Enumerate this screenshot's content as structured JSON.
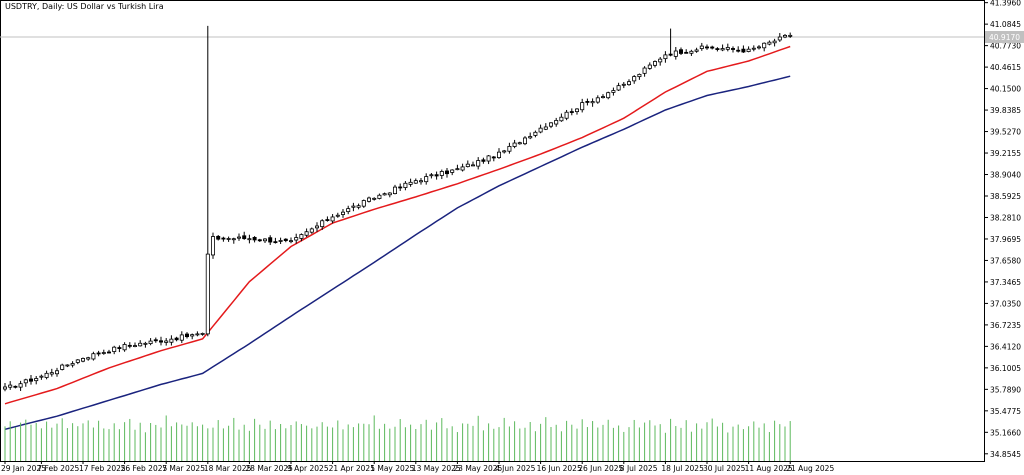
{
  "title": "USDTRY, Daily:  US Dollar vs Turkish Lira",
  "current_price_label": "40.9170",
  "colors": {
    "background": "#ffffff",
    "candle_outline": "#000000",
    "ma_fast": "#e41a1c",
    "ma_slow": "#1a237e",
    "volume": "#5cb85c",
    "price_line": "#c0c0c0",
    "price_badge": "#c0c0c0"
  },
  "chart_data": {
    "type": "candlestick",
    "symbol": "USDTRY",
    "timeframe": "Daily",
    "ylim": [
      34.75,
      41.42
    ],
    "y_ticks": [
      "41.3960",
      "41.0845",
      "40.7730",
      "40.4615",
      "40.1500",
      "39.8385",
      "39.5270",
      "39.2155",
      "38.9040",
      "38.5925",
      "38.2810",
      "37.9695",
      "37.6580",
      "37.3465",
      "37.0350",
      "36.7235",
      "36.4120",
      "36.1005",
      "35.7890",
      "35.4775",
      "35.1660",
      "34.8545"
    ],
    "x_tick_labels": [
      "29 Jan 2025",
      "7 Feb 2025",
      "17 Feb 2025",
      "26 Feb 2025",
      "7 Mar 2025",
      "18 Mar 2025",
      "28 Mar 2025",
      "9 Apr 2025",
      "21 Apr 2025",
      "1 May 2025",
      "13 May 2025",
      "23 May 2025",
      "4 Jun 2025",
      "16 Jun 2025",
      "26 Jun 2025",
      "8 Jul 2025",
      "18 Jul 2025",
      "30 Jul 2025",
      "11 Aug 2025",
      "21 Aug 2025"
    ],
    "x_tick_index": [
      0,
      7,
      15,
      23,
      31,
      39,
      47,
      55,
      63,
      71,
      79,
      87,
      95,
      103,
      111,
      119,
      127,
      135,
      143,
      151
    ],
    "anchors": {
      "idx": [
        0,
        7,
        15,
        23,
        31,
        38,
        39,
        40,
        47,
        55,
        63,
        71,
        79,
        87,
        95,
        103,
        111,
        119,
        127,
        135,
        143,
        151
      ],
      "close": [
        35.8,
        35.98,
        36.25,
        36.42,
        36.51,
        36.6,
        37.75,
        37.98,
        37.98,
        37.92,
        38.3,
        38.57,
        38.82,
        38.98,
        39.2,
        39.58,
        39.92,
        40.2,
        40.65,
        40.75,
        40.7,
        40.93
      ]
    },
    "spikes": [
      {
        "idx": 39,
        "high": 41.06
      },
      {
        "idx": 128,
        "high": 41.02
      }
    ],
    "ma_fast": {
      "idx": [
        0,
        10,
        20,
        30,
        38,
        47,
        55,
        63,
        71,
        79,
        87,
        95,
        103,
        111,
        119,
        127,
        135,
        143,
        151
      ],
      "value": [
        35.58,
        35.8,
        36.1,
        36.35,
        36.52,
        37.35,
        37.86,
        38.2,
        38.4,
        38.58,
        38.77,
        38.98,
        39.2,
        39.44,
        39.72,
        40.1,
        40.4,
        40.55,
        40.76
      ]
    },
    "ma_slow": {
      "idx": [
        0,
        10,
        20,
        30,
        38,
        47,
        55,
        63,
        71,
        79,
        87,
        95,
        103,
        111,
        119,
        127,
        135,
        143,
        151
      ],
      "value": [
        35.21,
        35.4,
        35.63,
        35.86,
        36.02,
        36.45,
        36.85,
        37.24,
        37.63,
        38.03,
        38.42,
        38.74,
        39.02,
        39.3,
        39.56,
        39.84,
        40.05,
        40.18,
        40.33
      ]
    },
    "volume_scale": [
      0.65,
      0.8,
      0.55,
      0.7,
      0.9,
      0.6,
      0.75,
      0.5,
      0.85,
      0.7,
      0.65,
      0.95,
      0.55,
      0.8,
      0.6,
      0.7,
      0.88,
      0.62,
      0.78,
      0.52
    ]
  }
}
